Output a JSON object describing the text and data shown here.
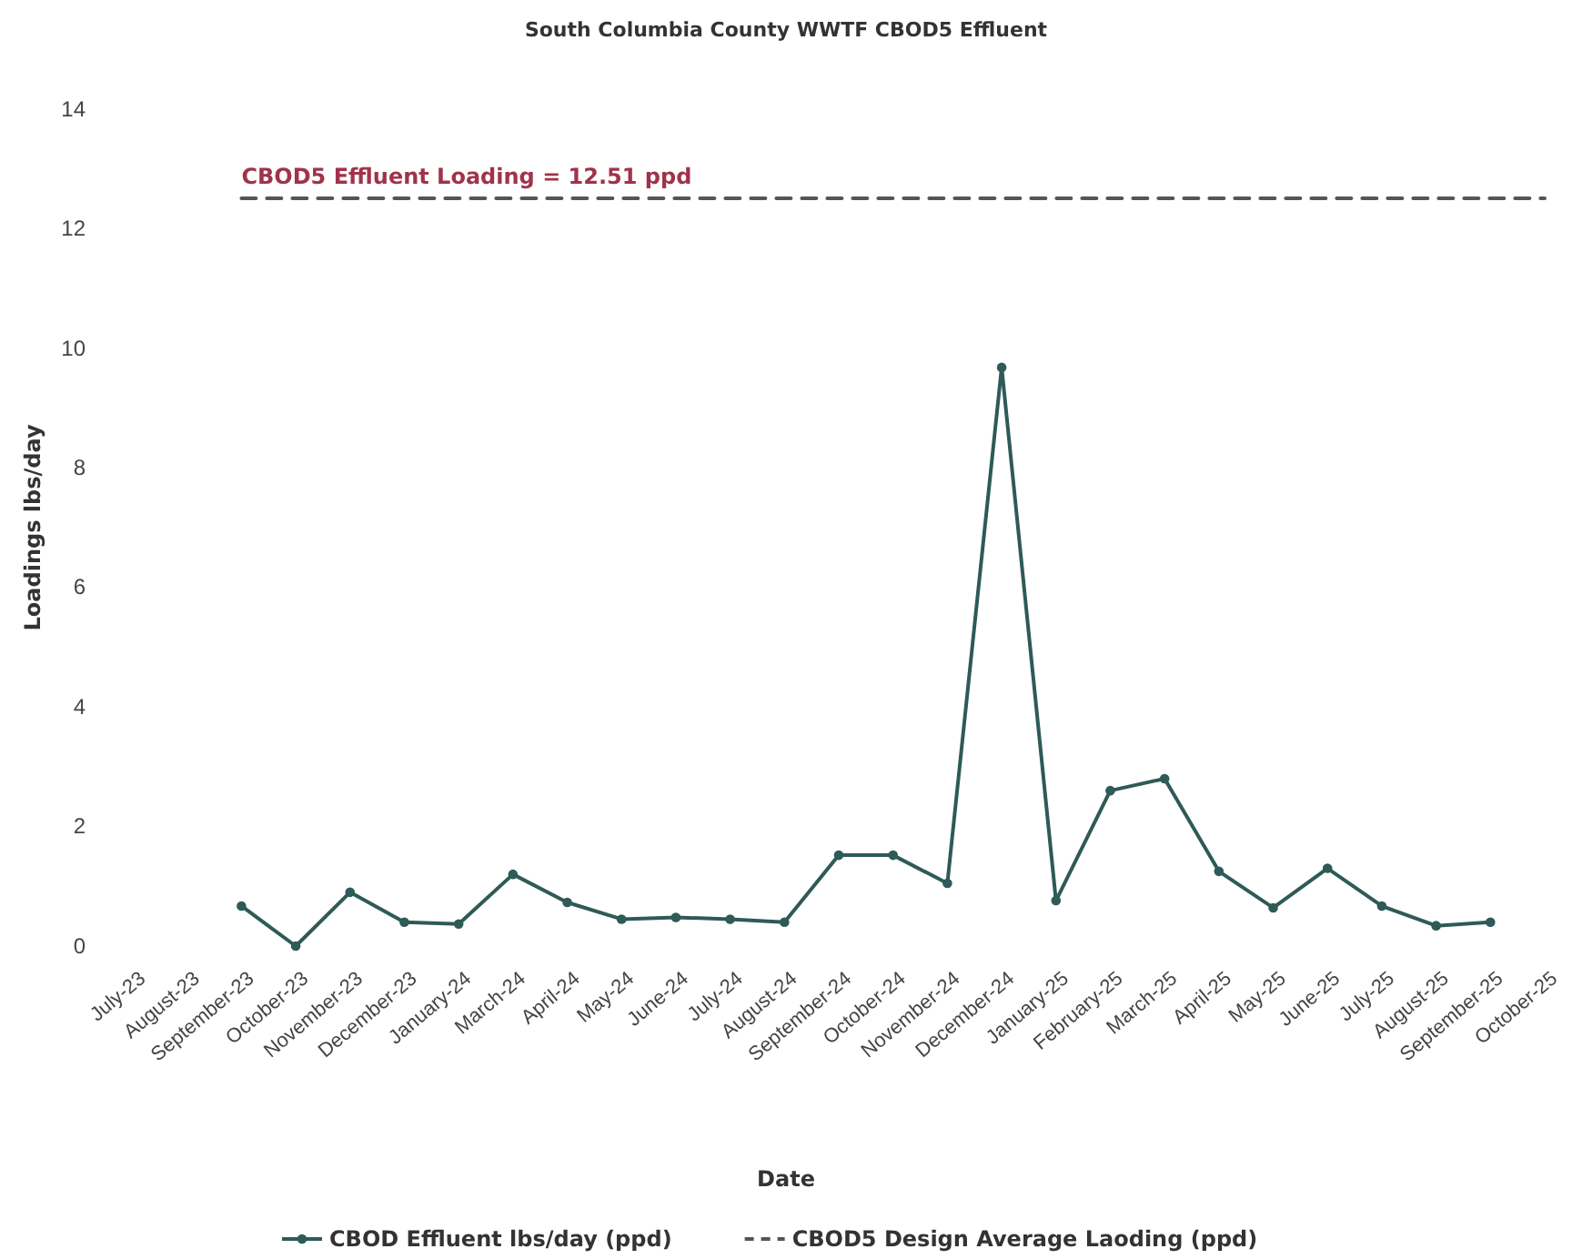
{
  "chart_data": {
    "type": "line",
    "title": "South Columbia County WWTF CBOD5 Effluent",
    "xlabel": "Date",
    "ylabel": "Loadings lbs/day",
    "categories": [
      "July-23",
      "August-23",
      "September-23",
      "October-23",
      "November-23",
      "December-23",
      "January-24",
      "March-24",
      "April-24",
      "May-24",
      "June-24",
      "July-24",
      "August-24",
      "September-24",
      "October-24",
      "November-24",
      "December-24",
      "January-25",
      "February-25",
      "March-25",
      "April-25",
      "May-25",
      "June-25",
      "July-25",
      "August-25",
      "September-25",
      "October-25"
    ],
    "series": [
      {
        "name": "CBOD Effluent lbs/day (ppd)",
        "color": "#2e5a57",
        "marker": "circle",
        "line_style": "solid",
        "values": [
          null,
          null,
          0.67,
          0,
          0.9,
          0.4,
          0.37,
          1.2,
          0.73,
          0.45,
          0.48,
          0.45,
          0.4,
          1.52,
          1.52,
          1.05,
          9.68,
          0.76,
          2.6,
          2.8,
          1.25,
          0.64,
          1.3,
          0.67,
          0.34,
          0.4,
          null
        ]
      },
      {
        "name": "CBOD5 Design Average Laoding (ppd)",
        "color": "#555555",
        "marker": "none",
        "line_style": "dashed",
        "values": [
          null,
          null,
          12.51,
          12.51,
          12.51,
          12.51,
          12.51,
          12.51,
          12.51,
          12.51,
          12.51,
          12.51,
          12.51,
          12.51,
          12.51,
          12.51,
          12.51,
          12.51,
          12.51,
          12.51,
          12.51,
          12.51,
          12.51,
          12.51,
          12.51,
          12.51,
          12.51
        ]
      }
    ],
    "annotations": [
      {
        "text": "CBOD5 Effluent Loading = 12.51 ppd",
        "x": "September-23",
        "y": 12.51
      }
    ],
    "ylim": [
      0,
      14
    ],
    "yticks": [
      0,
      2,
      4,
      6,
      8,
      10,
      12,
      14
    ],
    "grid": false,
    "legend": "bottom"
  }
}
